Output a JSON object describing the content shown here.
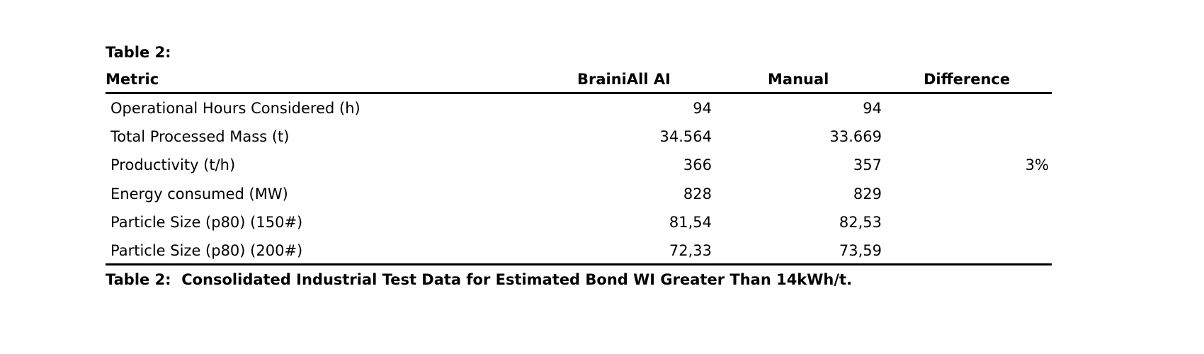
{
  "table_label": "Table 2:",
  "table": {
    "header": [
      "Metric",
      "BrainiAll AI",
      "Manual",
      "Difference"
    ],
    "rows": [
      [
        "Operational Hours Considered (h)",
        "94",
        "94",
        null
      ],
      [
        "Total Processed Mass (t)",
        "34.564",
        "33.669",
        null
      ],
      [
        "Productivity (t/h)",
        "366",
        "357",
        "3%"
      ],
      [
        "Energy consumed (MW)",
        "828",
        "829",
        null
      ],
      [
        "Particle Size (p80) (150#)",
        "81,54",
        "82,53",
        null
      ],
      [
        "Particle Size (p80) (200#)",
        "72,33",
        "73,59",
        null
      ]
    ]
  },
  "caption": "Table 2:  Consolidated Industrial Test Data for Estimated Bond WI Greater Than 14kWh/t."
}
